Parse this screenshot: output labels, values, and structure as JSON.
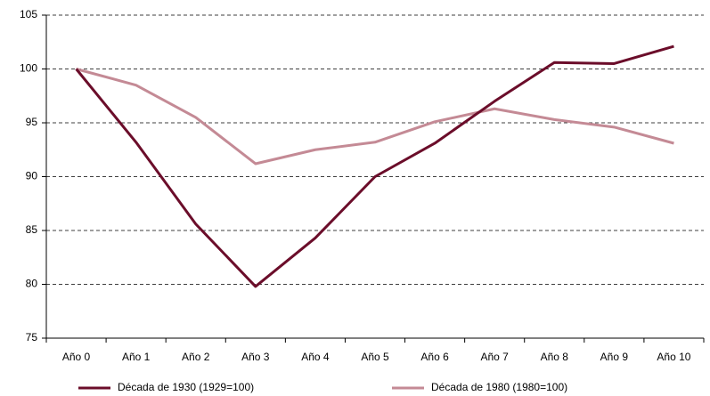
{
  "chart_data": {
    "type": "line",
    "categories": [
      "Año 0",
      "Año 1",
      "Año 2",
      "Año 3",
      "Año 4",
      "Año 5",
      "Año 6",
      "Año 7",
      "Año 8",
      "Año 9",
      "Año 10"
    ],
    "series": [
      {
        "name": "Década de 1930 (1929=100)",
        "color": "#6b0d2a",
        "values": [
          100,
          93.2,
          85.6,
          79.8,
          84.3,
          90.0,
          93.1,
          97.0,
          100.6,
          100.5,
          102.1
        ]
      },
      {
        "name": "Década de 1980 (1980=100)",
        "color": "#c48a95",
        "values": [
          100,
          98.5,
          95.5,
          91.2,
          92.5,
          93.2,
          95.1,
          96.3,
          95.3,
          94.6,
          93.1
        ]
      }
    ],
    "ylim": [
      75,
      105
    ],
    "yticks": [
      75,
      80,
      85,
      90,
      95,
      100,
      105
    ],
    "grid": true,
    "legend": "bottom"
  }
}
